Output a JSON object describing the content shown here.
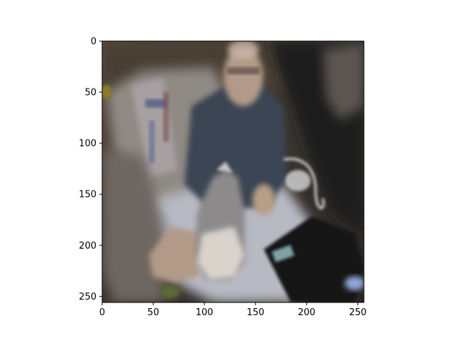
{
  "image": {
    "description_icon": "blurry-photo-icon",
    "palette": {
      "background": "#3b352f",
      "blanket": "#b7b9c3",
      "sweater": "#3a4452",
      "skin": "#b29a88",
      "cat_gray": "#8d8a8b",
      "cat_white": "#d9d3cc",
      "plaid_chair": "#8f8a84",
      "dark_corner": "#1b1b1d",
      "black_bag": "#151719"
    }
  },
  "axes": {
    "x_ticks": [
      "0",
      "50",
      "100",
      "150",
      "200",
      "250"
    ],
    "y_ticks": [
      "0",
      "50",
      "100",
      "150",
      "200",
      "250"
    ],
    "x_range": [
      0,
      256
    ],
    "y_range": [
      0,
      256
    ]
  }
}
